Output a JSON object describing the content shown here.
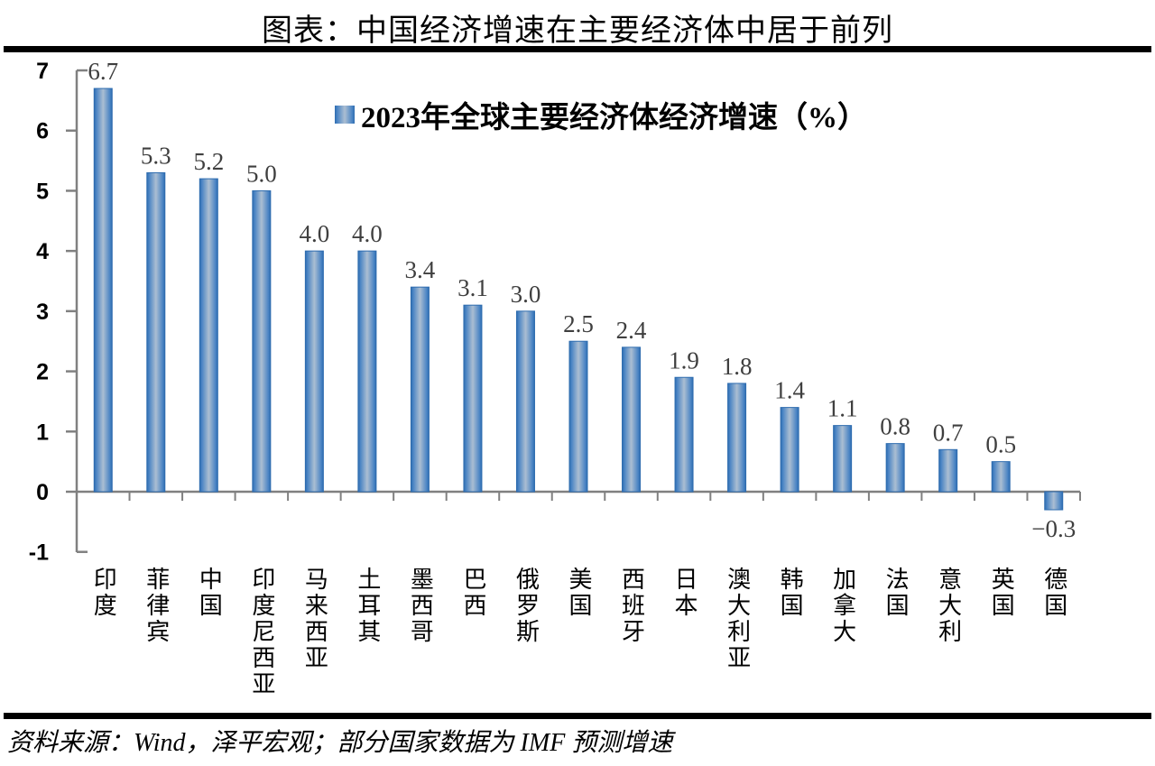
{
  "page_title": "图表：中国经济增速在主要经济体中居于前列",
  "source_note": "资料来源：Wind，泽平宏观；部分国家数据为 IMF 预测增速",
  "colors": {
    "bar_edge": "#2E6CAF",
    "bar_light": "#4A84C4",
    "bar_mid": "#ABBED2",
    "axis": "#808080",
    "value_label": "#3F3F3F",
    "rule": "#000000"
  },
  "chart_data": {
    "type": "bar",
    "title": "图表：中国经济增速在主要经济体中居于前列",
    "legend": "2023年全球主要经济体经济增速（%）",
    "categories": [
      "印度",
      "菲律宾",
      "中国",
      "印度尼西亚",
      "马来西亚",
      "土耳其",
      "墨西哥",
      "巴西",
      "俄罗斯",
      "美国",
      "西班牙",
      "日本",
      "澳大利亚",
      "韩国",
      "加拿大",
      "法国",
      "意大利",
      "英国",
      "德国"
    ],
    "values": [
      6.7,
      5.3,
      5.2,
      5.0,
      4.0,
      4.0,
      3.4,
      3.1,
      3.0,
      2.5,
      2.4,
      1.9,
      1.8,
      1.4,
      1.1,
      0.8,
      0.7,
      0.5,
      -0.3
    ],
    "labels": [
      "6.7",
      "5.3",
      "5.2",
      "5.0",
      "4.0",
      "4.0",
      "3.4",
      "3.1",
      "3.0",
      "2.5",
      "2.4",
      "1.9",
      "1.8",
      "1.4",
      "1.1",
      "0.8",
      "0.7",
      "0.5",
      "−0.3"
    ],
    "yticks": [
      "7",
      "6",
      "5",
      "4",
      "3",
      "2",
      "1",
      "0",
      "-1"
    ],
    "ytick_values": [
      7,
      6,
      5,
      4,
      3,
      2,
      1,
      0,
      -1
    ],
    "ylim": [
      -1,
      7
    ],
    "xlabel": "",
    "ylabel": "",
    "grid": false,
    "legend_position": "top-center"
  }
}
